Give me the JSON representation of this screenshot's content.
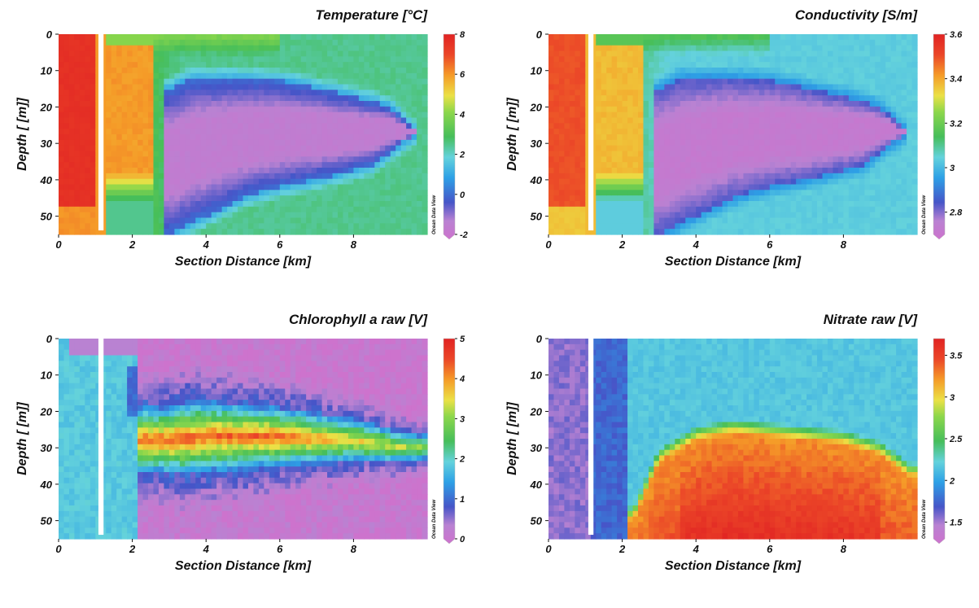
{
  "credit": "Ocean Data View",
  "chart_data": [
    {
      "type": "heatmap",
      "title": "Temperature [°C]",
      "xlabel": "Section Distance [km]",
      "ylabel": "Depth [ [m]]",
      "xlim": [
        0,
        10
      ],
      "ylim": [
        55,
        0
      ],
      "xticks": [
        "0",
        "2",
        "4",
        "6",
        "8"
      ],
      "yticks": [
        "0",
        "10",
        "20",
        "30",
        "40",
        "50"
      ],
      "colorbar": {
        "min": -2,
        "max": 8,
        "ticks": [
          "8",
          "6",
          "4",
          "2",
          "0",
          "-2"
        ]
      },
      "field": {
        "mode": "core",
        "bg": 2.6,
        "coastal": 7.6,
        "band2": 6.0,
        "band2_bottom": 38,
        "band2_end": 2.6,
        "front": 3.1,
        "core": -1.4,
        "rim": 0.2,
        "rim_width": 0.7,
        "top": 4.1,
        "rim2": 1.2,
        "core_top": [
          [
            3.0,
            15
          ],
          [
            3.6,
            12
          ],
          [
            5,
            12
          ],
          [
            6.2,
            13
          ],
          [
            8,
            17
          ],
          [
            9,
            20
          ],
          [
            9.6,
            26
          ]
        ],
        "core_bottom": [
          [
            3.0,
            55
          ],
          [
            4,
            50
          ],
          [
            5,
            45
          ],
          [
            6,
            42
          ],
          [
            7,
            40
          ],
          [
            8.5,
            36
          ],
          [
            9.6,
            28
          ]
        ]
      }
    },
    {
      "type": "heatmap",
      "title": "Conductivity [S/m]",
      "xlabel": "Section Distance [km]",
      "ylabel": "Depth [ [m]]",
      "xlim": [
        0,
        10
      ],
      "ylim": [
        55,
        0
      ],
      "xticks": [
        "0",
        "2",
        "4",
        "6",
        "8"
      ],
      "yticks": [
        "0",
        "10",
        "20",
        "30",
        "40",
        "50"
      ],
      "colorbar": {
        "min": 2.7,
        "max": 3.6,
        "ticks": [
          "3.6",
          "3.4",
          "3.2",
          "3",
          "2.8"
        ]
      },
      "field": {
        "mode": "core",
        "bg": 3.05,
        "coastal": 3.5,
        "band2": 3.38,
        "band2_bottom": 38,
        "band2_end": 2.6,
        "front": 3.1,
        "core": 2.74,
        "rim": 2.86,
        "rim_width": 0.7,
        "top": 3.18,
        "rim2": 2.95,
        "core_top": [
          [
            3.0,
            15
          ],
          [
            3.6,
            12
          ],
          [
            5,
            12
          ],
          [
            6.2,
            13
          ],
          [
            8,
            17
          ],
          [
            9,
            20
          ],
          [
            9.6,
            26
          ]
        ],
        "core_bottom": [
          [
            3.0,
            55
          ],
          [
            4,
            50
          ],
          [
            5,
            45
          ],
          [
            6,
            42
          ],
          [
            7,
            40
          ],
          [
            8.5,
            36
          ],
          [
            9.6,
            28
          ]
        ]
      }
    },
    {
      "type": "heatmap",
      "title": "Chlorophyll a raw [V]",
      "xlabel": "Section Distance [km]",
      "ylabel": "Depth [ [m]]",
      "xlim": [
        0,
        10
      ],
      "ylim": [
        55,
        0
      ],
      "xticks": [
        "0",
        "2",
        "4",
        "6",
        "8"
      ],
      "yticks": [
        "0",
        "10",
        "20",
        "30",
        "40",
        "50"
      ],
      "colorbar": {
        "min": 0,
        "max": 5,
        "ticks": [
          "5",
          "4",
          "3",
          "2",
          "1",
          "0"
        ]
      },
      "field": {
        "mode": "chl",
        "surface": 0.15,
        "bottom": 0.2,
        "coastal": 1.9,
        "layer_peak": 4.4,
        "layer_center": [
          [
            2.8,
            28
          ],
          [
            4,
            27
          ],
          [
            6,
            27
          ],
          [
            8,
            28
          ],
          [
            9.5,
            30
          ]
        ],
        "layer_half": [
          [
            2.8,
            9
          ],
          [
            3.5,
            10
          ],
          [
            5,
            9
          ],
          [
            7,
            7
          ],
          [
            9,
            5
          ],
          [
            9.8,
            4
          ]
        ]
      }
    },
    {
      "type": "heatmap",
      "title": "Nitrate raw [V]",
      "xlabel": "Section Distance [km]",
      "ylabel": "Depth [ [m]]",
      "xlim": [
        0,
        10
      ],
      "ylim": [
        55,
        0
      ],
      "xticks": [
        "0",
        "2",
        "4",
        "6",
        "8"
      ],
      "yticks": [
        "0",
        "10",
        "20",
        "30",
        "40",
        "50"
      ],
      "colorbar": {
        "min": 1.3,
        "max": 3.7,
        "ticks": [
          "3.5",
          "3",
          "2.5",
          "2",
          "1.5"
        ]
      },
      "field": {
        "mode": "no3",
        "coastal": 1.6,
        "surface": 2.2,
        "deep": 3.25,
        "deep_max": 3.45,
        "boundary": [
          [
            2.3,
            50
          ],
          [
            3,
            34
          ],
          [
            4,
            28
          ],
          [
            5,
            26
          ],
          [
            6,
            27
          ],
          [
            7,
            28
          ],
          [
            8,
            29
          ],
          [
            9,
            32
          ],
          [
            9.8,
            38
          ]
        ]
      }
    }
  ]
}
